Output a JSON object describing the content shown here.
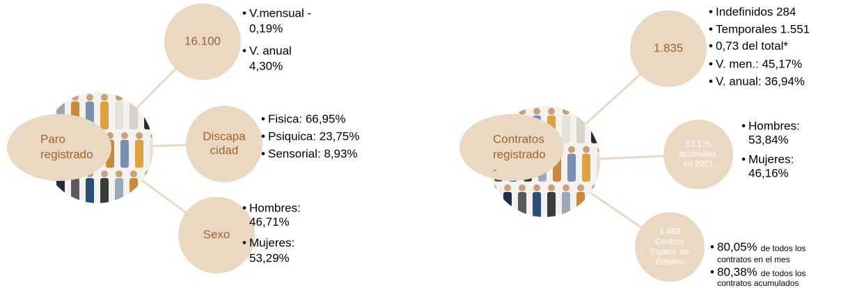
{
  "left": {
    "hub": [
      "Paro",
      "registrado"
    ],
    "nodes": [
      {
        "label": [
          "16.100"
        ],
        "bullets": [
          [
            "V.mensual -",
            "0,19%"
          ],
          [
            "V. anual",
            "4,30%"
          ]
        ]
      },
      {
        "label": [
          "Discapa",
          "cidad"
        ],
        "bullets": [
          [
            "Fisica: 66,95%"
          ],
          [
            "Psiquica: 23,75%"
          ],
          [
            "Sensorial: 8,93%"
          ]
        ]
      },
      {
        "label": [
          "Sexo"
        ],
        "bullets": [
          [
            "Hombres:",
            "46,71%"
          ],
          [
            "Mujeres:",
            "53,29%"
          ]
        ]
      }
    ]
  },
  "right": {
    "hub": [
      "Contratos",
      "registrado",
      "-"
    ],
    "nodes": [
      {
        "label": [
          "1.835"
        ],
        "bullets": [
          [
            "Indefinidos 284"
          ],
          [
            "Temporales 1.551"
          ],
          [
            " 0,73 del total*"
          ],
          [
            "V. men.: 45,17%"
          ],
          [
            "V. anual: 36,94%"
          ]
        ]
      },
      {
        "label": [
          "13.175",
          "acumulad.",
          "en 2021"
        ],
        "bullets": [
          [
            "Hombres:",
            "53,84%"
          ],
          [
            "Mujeres:",
            "46,16%"
          ]
        ]
      },
      {
        "label": [
          "1.469",
          "Centros",
          "Especi. de",
          "Empleo"
        ],
        "bullets": [
          {
            "big": "80,05%",
            "small": [
              "de todos los",
              "contratos en el mes"
            ]
          },
          {
            "big": "80,38%",
            "small": [
              "de todos los",
              "contratos acumulados"
            ]
          }
        ]
      }
    ]
  }
}
